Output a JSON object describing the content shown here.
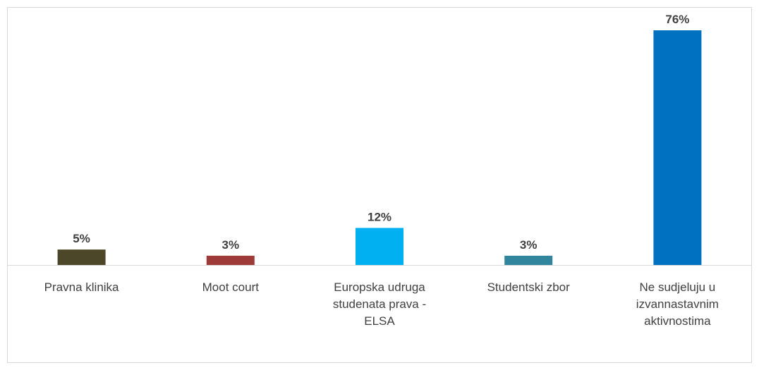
{
  "chart_data": {
    "type": "bar",
    "categories": [
      "Pravna klinika",
      "Moot court",
      "Europska udruga studenata prava - ELSA",
      "Studentski zbor",
      "Ne sudjeluju u izvannastavnim aktivnostima"
    ],
    "values": [
      5,
      3,
      12,
      3,
      76
    ],
    "value_labels": [
      "5%",
      "3%",
      "12%",
      "3%",
      "76%"
    ],
    "colors": [
      "#4d4729",
      "#9e3a38",
      "#00b0f0",
      "#31859c",
      "#0070c0"
    ]
  }
}
